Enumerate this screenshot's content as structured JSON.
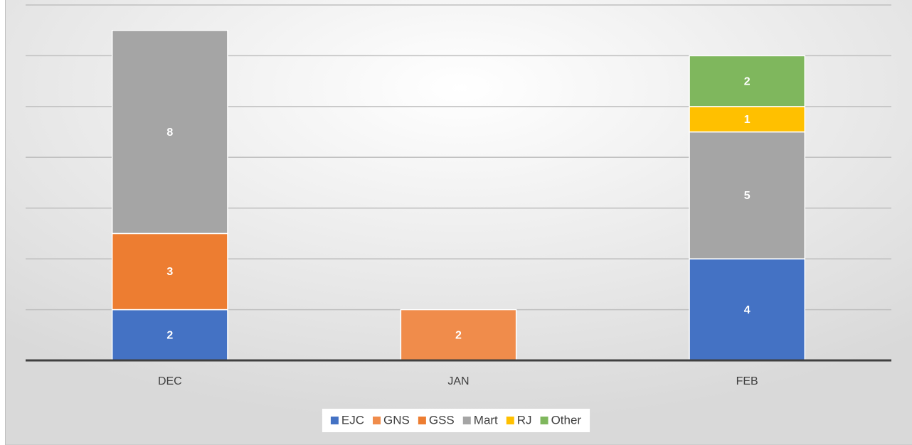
{
  "chart_data": {
    "type": "bar",
    "stacked": true,
    "categories": [
      "DEC",
      "JAN",
      "FEB"
    ],
    "series": [
      {
        "name": "EJC",
        "color": "#4472c4",
        "values": [
          2,
          null,
          4
        ]
      },
      {
        "name": "GNS",
        "color": "#f08c4b",
        "values": [
          null,
          2,
          null
        ]
      },
      {
        "name": "GSS",
        "color": "#ed7d31",
        "values": [
          3,
          null,
          null
        ]
      },
      {
        "name": "Mart",
        "color": "#a5a5a5",
        "values": [
          8,
          null,
          5
        ]
      },
      {
        "name": "RJ",
        "color": "#ffc000",
        "values": [
          null,
          null,
          1
        ]
      },
      {
        "name": "Other",
        "color": "#7fb75d",
        "values": [
          null,
          null,
          2
        ]
      }
    ],
    "ylim": [
      0,
      14
    ],
    "yticks": [
      0,
      2,
      4,
      6,
      8,
      10,
      12,
      14
    ],
    "grid": true,
    "legend": "bottom"
  }
}
